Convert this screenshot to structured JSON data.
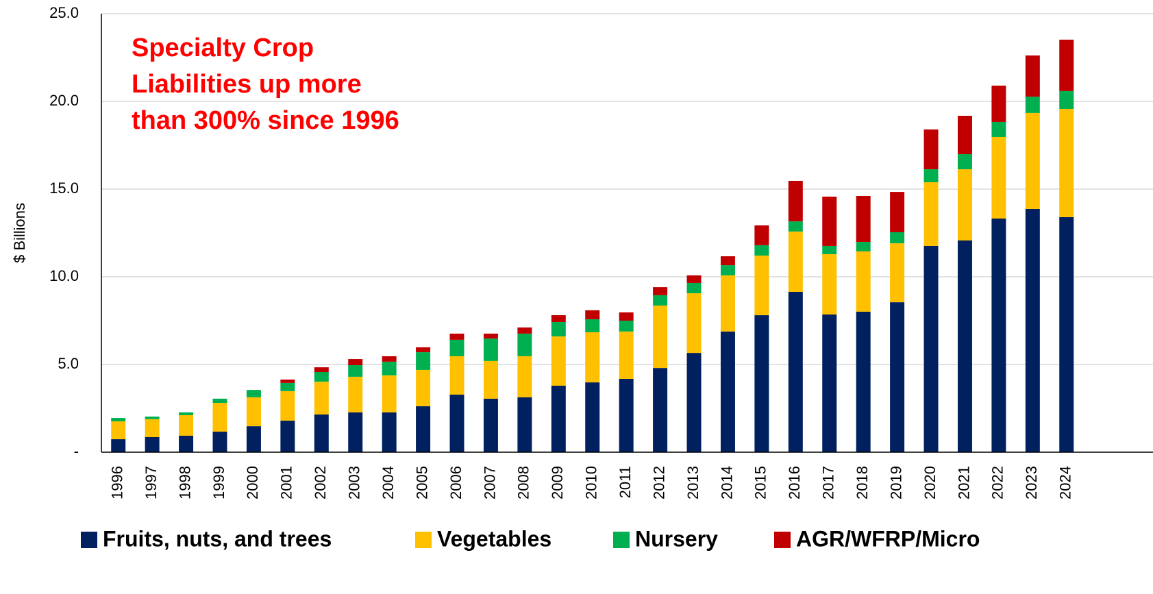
{
  "chart_data": {
    "type": "stacked_bar",
    "annotation": [
      "Specialty Crop",
      "Liabilities up more",
      "than 300% since 1996"
    ],
    "y_label": "$ Billions",
    "categories": [
      "1996",
      "1997",
      "1998",
      "1999",
      "2000",
      "2001",
      "2002",
      "2003",
      "2004",
      "2005",
      "2006",
      "2007",
      "2008",
      "2009",
      "2010",
      "2011",
      "2012",
      "2013",
      "2014",
      "2015",
      "2016",
      "2017",
      "2018",
      "2019",
      "2020",
      "2021",
      "2022",
      "2023",
      "2024"
    ],
    "series": [
      {
        "name": "Fruits, nuts, and trees",
        "color": "#002060",
        "values": [
          0.74,
          0.86,
          0.94,
          1.17,
          1.48,
          1.8,
          2.15,
          2.27,
          2.27,
          2.62,
          3.28,
          3.05,
          3.13,
          3.79,
          3.98,
          4.18,
          4.8,
          5.66,
          6.88,
          7.81,
          9.14,
          7.85,
          8.01,
          8.55,
          11.76,
          12.07,
          13.32,
          13.87,
          13.4
        ]
      },
      {
        "name": "Vegetables",
        "color": "#FFC000",
        "values": [
          1.02,
          1.02,
          1.17,
          1.64,
          1.65,
          1.68,
          1.87,
          2.03,
          2.11,
          2.07,
          2.19,
          2.15,
          2.34,
          2.81,
          2.86,
          2.7,
          3.56,
          3.4,
          3.2,
          3.4,
          3.44,
          3.44,
          3.44,
          3.36,
          3.63,
          4.06,
          4.65,
          5.47,
          6.17
        ]
      },
      {
        "name": "Nursery",
        "color": "#00B050",
        "values": [
          0.19,
          0.15,
          0.16,
          0.24,
          0.42,
          0.47,
          0.55,
          0.66,
          0.78,
          1.01,
          0.94,
          1.28,
          1.29,
          0.82,
          0.74,
          0.62,
          0.59,
          0.59,
          0.58,
          0.59,
          0.58,
          0.47,
          0.54,
          0.63,
          0.74,
          0.86,
          0.86,
          0.93,
          1.02
        ]
      },
      {
        "name": "AGR/WFRP/Micro",
        "color": "#C00000",
        "values": [
          0,
          0,
          0,
          0,
          0,
          0.19,
          0.27,
          0.35,
          0.31,
          0.28,
          0.35,
          0.28,
          0.35,
          0.39,
          0.51,
          0.47,
          0.46,
          0.43,
          0.51,
          1.13,
          2.31,
          2.81,
          2.62,
          2.3,
          2.27,
          2.19,
          2.07,
          2.35,
          2.93
        ]
      }
    ],
    "ylim": [
      0,
      25
    ],
    "yticks": [
      {
        "value": 0,
        "label": "-"
      },
      {
        "value": 5,
        "label": "5.0"
      },
      {
        "value": 10,
        "label": "10.0"
      },
      {
        "value": 15,
        "label": "15.0"
      },
      {
        "value": 20,
        "label": "20.0"
      },
      {
        "value": 25,
        "label": "25.0"
      }
    ],
    "grid": true,
    "legend": "bottom",
    "annotation_color": "#FF0000"
  }
}
